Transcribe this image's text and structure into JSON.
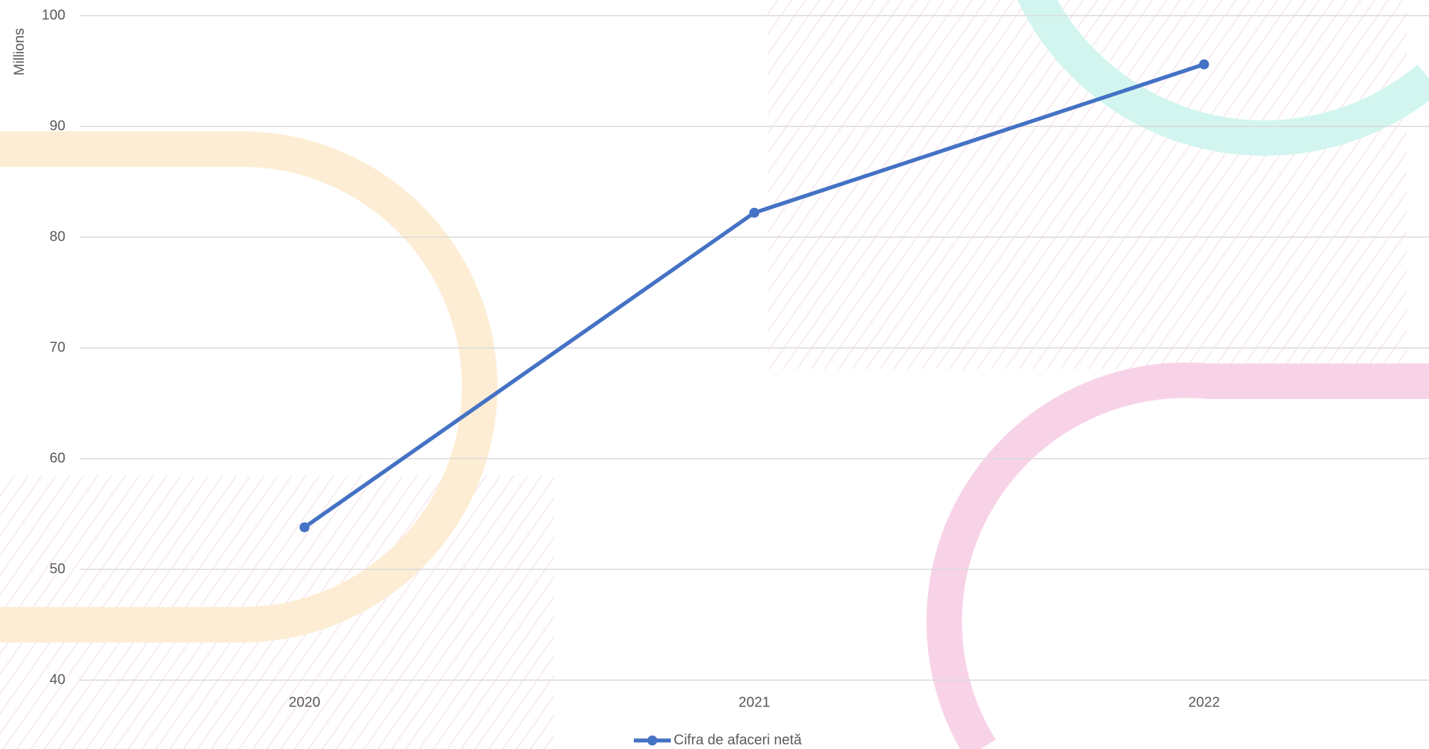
{
  "chart_data": {
    "type": "line",
    "y_axis_label": "Millions",
    "categories": [
      "2020",
      "2021",
      "2022"
    ],
    "series": [
      {
        "name": "Cifra de afaceri netă",
        "color": "#4472c4",
        "values": [
          53.8,
          82.2,
          95.6
        ]
      }
    ],
    "ylim": [
      40,
      100
    ],
    "yticks": [
      40,
      50,
      60,
      70,
      80,
      90,
      100
    ],
    "grid": true,
    "legend": "bottom"
  }
}
